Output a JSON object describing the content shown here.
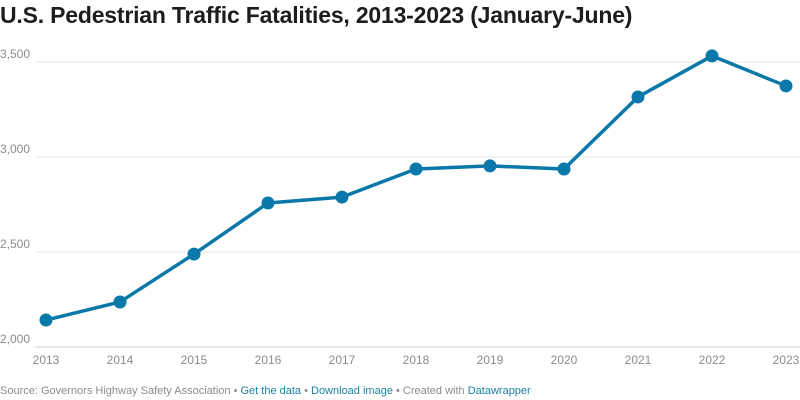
{
  "chart_data": {
    "type": "line",
    "title": "U.S. Pedestrian Traffic Fatalities, 2013-2023 (January-June)",
    "x": [
      "2013",
      "2014",
      "2015",
      "2016",
      "2017",
      "2018",
      "2019",
      "2020",
      "2021",
      "2022",
      "2023"
    ],
    "values": [
      2142,
      2237,
      2489,
      2758,
      2789,
      2937,
      2953,
      2937,
      3316,
      3532,
      3374
    ],
    "ylim": [
      2000,
      3600
    ],
    "yticks": [
      2000,
      2500,
      3000,
      3500
    ],
    "ytick_labels": [
      "2,000",
      "2,500",
      "3,000",
      "3,500"
    ],
    "grid": "horizontal",
    "line_color": "#0a78a8"
  },
  "footer": {
    "source": "Source: Governors Highway Safety Association",
    "sep": " • ",
    "get_data": "Get the data",
    "download": "Download image",
    "created": "Created with",
    "datawrapper": "Datawrapper"
  }
}
